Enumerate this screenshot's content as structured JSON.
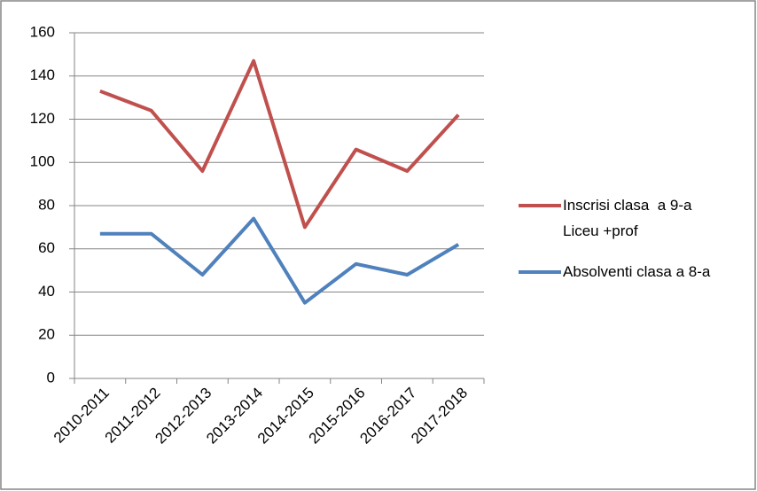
{
  "chart_data": {
    "type": "line",
    "categories": [
      "2010-2011",
      "2011-2012",
      "2012-2013",
      "2013-2014",
      "2014-2015",
      "2015-2016",
      "2016-2017",
      "2017-2018"
    ],
    "series": [
      {
        "name": "Inscrisi clasa  a 9-a Liceu +prof",
        "color": "#c0504d",
        "values": [
          133,
          124,
          96,
          147,
          70,
          106,
          96,
          122
        ]
      },
      {
        "name": "Absolventi clasa a 8-a",
        "color": "#4f81bd",
        "values": [
          67,
          67,
          48,
          74,
          35,
          53,
          48,
          62
        ]
      }
    ],
    "ylim": [
      0,
      160
    ],
    "yticks": [
      0,
      20,
      40,
      60,
      80,
      100,
      120,
      140,
      160
    ],
    "grid": true,
    "legend": "right"
  }
}
